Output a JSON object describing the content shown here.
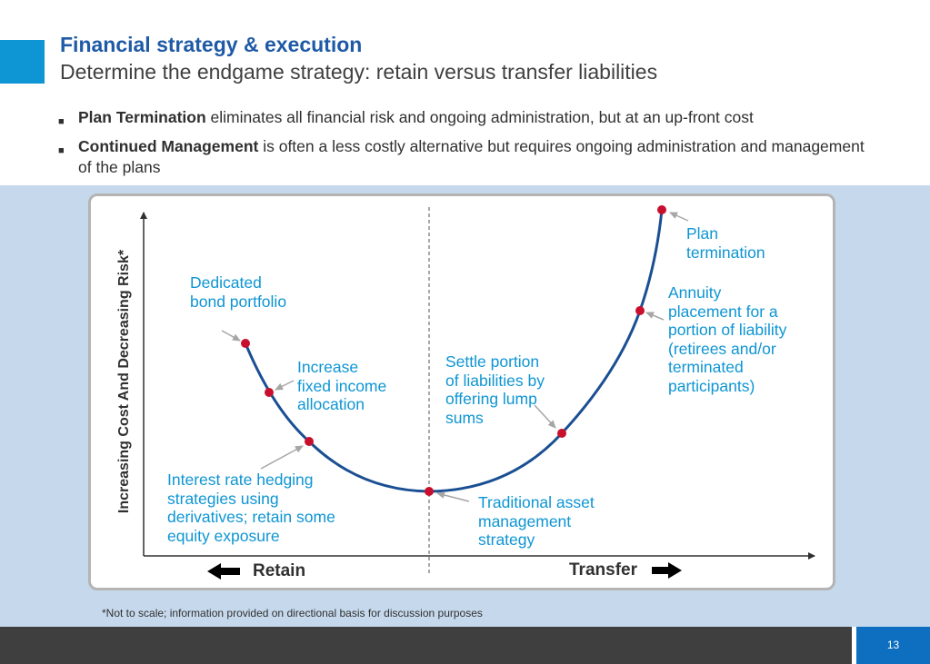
{
  "header": {
    "title": "Financial strategy & execution",
    "subtitle": "Determine the endgame strategy: retain versus transfer liabilities"
  },
  "bullets": [
    {
      "bold": "Plan Termination",
      "text": " eliminates all financial risk and ongoing administration, but at an up-front cost"
    },
    {
      "bold": "Continued Management",
      "text": " is often a less costly alternative but requires ongoing administration and management of the plans"
    }
  ],
  "diagram": {
    "y_axis_label": "Increasing Cost And Decreasing Risk*",
    "left_label": "Retain",
    "right_label": "Transfer",
    "colors": {
      "curve": "#1a4f93",
      "point": "#c8102e",
      "label": "#0e95d3",
      "arrow": "#a6a6a6"
    },
    "points": [
      {
        "label": "Dedicated\nbond portfolio"
      },
      {
        "label": "Increase\nfixed income\nallocation"
      },
      {
        "label": "Interest rate hedging\nstrategies using\nderivatives; retain some\nequity exposure"
      },
      {
        "label": "Traditional asset\nmanagement\nstrategy"
      },
      {
        "label": "Settle portion\nof liabilities by\noffering lump\nsums"
      },
      {
        "label": "Annuity\nplacement for a\nportion of liability\n(retirees and/or\nterminated\nparticipants)"
      },
      {
        "label": "Plan\ntermination"
      }
    ]
  },
  "footnote": "*Not to scale; information provided on directional basis for discussion purposes",
  "page_number": "13"
}
